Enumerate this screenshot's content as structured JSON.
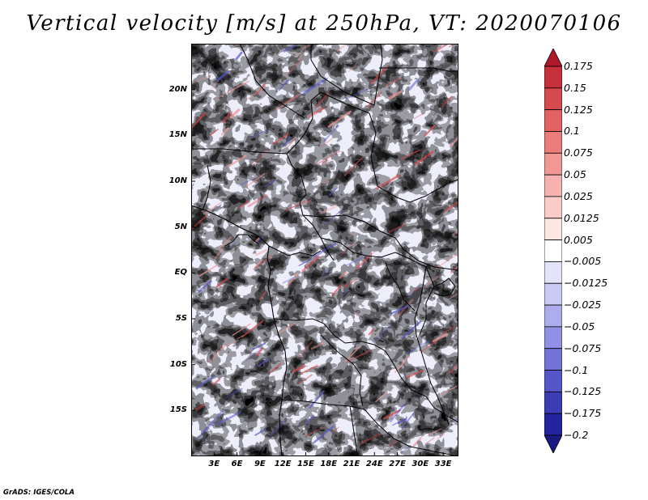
{
  "title": "Vertical velocity [m/s] at 250hPa, VT: 2020070106",
  "credit": "GrADS: IGES/COLA",
  "latitude_ticks": [
    "20N",
    "15N",
    "10N",
    "5N",
    "EQ",
    "5S",
    "10S",
    "15S"
  ],
  "latitude_values": [
    20,
    15,
    10,
    5,
    0,
    -5,
    -10,
    -15
  ],
  "longitude_ticks": [
    "3E",
    "6E",
    "9E",
    "12E",
    "15E",
    "18E",
    "21E",
    "24E",
    "27E",
    "30E",
    "33E"
  ],
  "longitude_values": [
    3,
    6,
    9,
    12,
    15,
    18,
    21,
    24,
    27,
    30,
    33
  ],
  "map_extent": {
    "lon_min": 0,
    "lon_max": 35,
    "lat_min": -20,
    "lat_max": 25
  },
  "colorbar": {
    "labels": [
      "0.175",
      "0.15",
      "0.125",
      "0.1",
      "0.075",
      "0.05",
      "0.025",
      "0.0125",
      "0.005",
      "−0.005",
      "−0.0125",
      "−0.025",
      "−0.05",
      "−0.075",
      "−0.1",
      "−0.125",
      "−0.175",
      "−0.2"
    ],
    "colors": [
      "#b2182b",
      "#c6303a",
      "#d6494c",
      "#e26262",
      "#ea7c7a",
      "#f19794",
      "#f5b2ae",
      "#f9ccc8",
      "#fce5e3",
      "#ffffff",
      "#e3e3fb",
      "#c9c9f5",
      "#adadee",
      "#9090e4",
      "#7474d8",
      "#5656c9",
      "#3c3cb5",
      "#24249e",
      "#1a1a80"
    ]
  },
  "field_colors": {
    "strong_positive": "#d6494c",
    "positive": "#f19794",
    "weak_positive": "#f9ccc8",
    "neutral": "#ffffff",
    "weak_negative": "#c9c9f5",
    "negative": "#9090e4",
    "strong_negative": "#5656c9"
  }
}
